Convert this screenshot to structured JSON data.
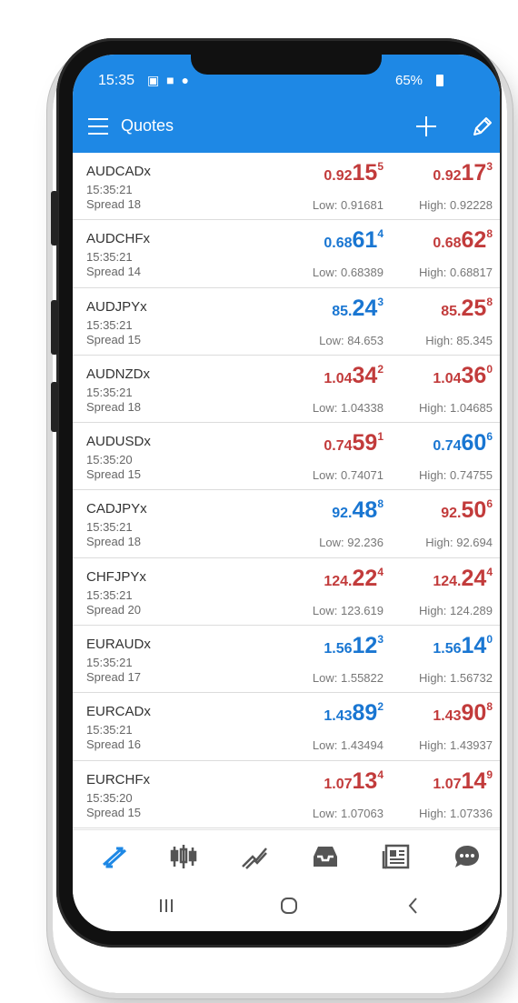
{
  "status": {
    "time": "15:35",
    "icons": "▣ ■ ●",
    "battery": "65%"
  },
  "appbar": {
    "title": "Quotes",
    "add_icon": "plus-icon",
    "edit_icon": "pencil-icon"
  },
  "colors": {
    "accent": "#1e88e5",
    "price_up": "#1976d2",
    "price_down": "#c23b3b"
  },
  "quotes": [
    {
      "symbol": "AUDCADx",
      "time": "15:35:21",
      "spread": "Spread 18",
      "bid": {
        "pre": "0.92",
        "big": "15",
        "sup": "5",
        "color": "red"
      },
      "ask": {
        "pre": "0.92",
        "big": "17",
        "sup": "3",
        "color": "red"
      },
      "low": "Low: 0.91681",
      "high": "High: 0.92228"
    },
    {
      "symbol": "AUDCHFx",
      "time": "15:35:21",
      "spread": "Spread 14",
      "bid": {
        "pre": "0.68",
        "big": "61",
        "sup": "4",
        "color": "blue"
      },
      "ask": {
        "pre": "0.68",
        "big": "62",
        "sup": "8",
        "color": "red"
      },
      "low": "Low: 0.68389",
      "high": "High: 0.68817"
    },
    {
      "symbol": "AUDJPYx",
      "time": "15:35:21",
      "spread": "Spread 15",
      "bid": {
        "pre": "85.",
        "big": "24",
        "sup": "3",
        "color": "blue"
      },
      "ask": {
        "pre": "85.",
        "big": "25",
        "sup": "8",
        "color": "red"
      },
      "low": "Low: 84.653",
      "high": "High: 85.345"
    },
    {
      "symbol": "AUDNZDx",
      "time": "15:35:21",
      "spread": "Spread 18",
      "bid": {
        "pre": "1.04",
        "big": "34",
        "sup": "2",
        "color": "red"
      },
      "ask": {
        "pre": "1.04",
        "big": "36",
        "sup": "0",
        "color": "red"
      },
      "low": "Low: 1.04338",
      "high": "High: 1.04685"
    },
    {
      "symbol": "AUDUSDx",
      "time": "15:35:20",
      "spread": "Spread 15",
      "bid": {
        "pre": "0.74",
        "big": "59",
        "sup": "1",
        "color": "red"
      },
      "ask": {
        "pre": "0.74",
        "big": "60",
        "sup": "6",
        "color": "blue"
      },
      "low": "Low: 0.74071",
      "high": "High: 0.74755"
    },
    {
      "symbol": "CADJPYx",
      "time": "15:35:21",
      "spread": "Spread 18",
      "bid": {
        "pre": "92.",
        "big": "48",
        "sup": "8",
        "color": "blue"
      },
      "ask": {
        "pre": "92.",
        "big": "50",
        "sup": "6",
        "color": "red"
      },
      "low": "Low: 92.236",
      "high": "High: 92.694"
    },
    {
      "symbol": "CHFJPYx",
      "time": "15:35:21",
      "spread": "Spread 20",
      "bid": {
        "pre": "124.",
        "big": "22",
        "sup": "4",
        "color": "red"
      },
      "ask": {
        "pre": "124.",
        "big": "24",
        "sup": "4",
        "color": "red"
      },
      "low": "Low: 123.619",
      "high": "High: 124.289"
    },
    {
      "symbol": "EURAUDx",
      "time": "15:35:21",
      "spread": "Spread 17",
      "bid": {
        "pre": "1.56",
        "big": "12",
        "sup": "3",
        "color": "blue"
      },
      "ask": {
        "pre": "1.56",
        "big": "14",
        "sup": "0",
        "color": "blue"
      },
      "low": "Low: 1.55822",
      "high": "High: 1.56732"
    },
    {
      "symbol": "EURCADx",
      "time": "15:35:21",
      "spread": "Spread 16",
      "bid": {
        "pre": "1.43",
        "big": "89",
        "sup": "2",
        "color": "blue"
      },
      "ask": {
        "pre": "1.43",
        "big": "90",
        "sup": "8",
        "color": "red"
      },
      "low": "Low: 1.43494",
      "high": "High: 1.43937"
    },
    {
      "symbol": "EURCHFx",
      "time": "15:35:20",
      "spread": "Spread 15",
      "bid": {
        "pre": "1.07",
        "big": "13",
        "sup": "4",
        "color": "red"
      },
      "ask": {
        "pre": "1.07",
        "big": "14",
        "sup": "9",
        "color": "red"
      },
      "low": "Low: 1.07063",
      "high": "High: 1.07336"
    }
  ],
  "tabs": [
    {
      "icon": "quotes-arrows-icon",
      "active": true
    },
    {
      "icon": "candlestick-chart-icon",
      "active": false
    },
    {
      "icon": "trade-lines-icon",
      "active": false
    },
    {
      "icon": "inbox-tray-icon",
      "active": false
    },
    {
      "icon": "news-icon",
      "active": false
    },
    {
      "icon": "chat-bubble-icon",
      "active": false
    }
  ],
  "system_nav": [
    {
      "icon": "recent-apps-icon"
    },
    {
      "icon": "home-icon"
    },
    {
      "icon": "back-icon"
    }
  ]
}
